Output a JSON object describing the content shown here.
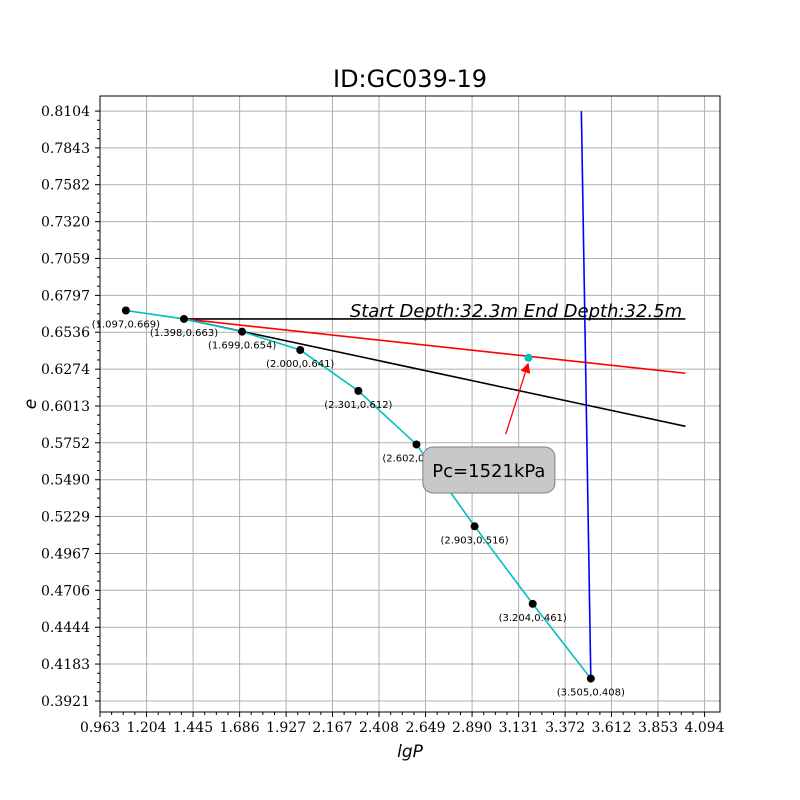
{
  "chart_data": {
    "type": "line",
    "title": "ID:GC039-19",
    "xlabel": "lgP",
    "ylabel": "e",
    "xlim": [
      0.963,
      4.174
    ],
    "ylim": [
      0.3843,
      0.8211
    ],
    "grid": true,
    "x_ticks": [
      "0.963",
      "1.204",
      "1.445",
      "1.686",
      "1.927",
      "2.167",
      "2.408",
      "2.649",
      "2.890",
      "3.131",
      "3.372",
      "3.612",
      "3.853",
      "4.094"
    ],
    "y_ticks": [
      "0.8104",
      "0.7843",
      "0.7582",
      "0.7320",
      "0.7059",
      "0.6797",
      "0.6536",
      "0.6274",
      "0.6013",
      "0.5752",
      "0.5490",
      "0.5229",
      "0.4967",
      "0.4706",
      "0.4444",
      "0.4183",
      "0.3921"
    ],
    "series": [
      {
        "color": "#00bfbf",
        "x": [
          1.097,
          1.398,
          1.699,
          2.0,
          2.301,
          2.602,
          2.903,
          3.204,
          3.505
        ],
        "y": [
          0.669,
          0.663,
          0.654,
          0.641,
          0.612,
          0.574,
          0.516,
          0.461,
          0.408
        ],
        "point_labels": [
          "(1.097,0.669)",
          "(1.398,0.663)",
          "(1.699,0.654)",
          "(2.000,0.641)",
          "(2.301,0.612)",
          "(2.602,0.574)",
          "(2.903,0.516)",
          "(3.204,0.461)",
          "(3.505,0.408)"
        ],
        "marker_color": "#000000"
      }
    ],
    "construction_lines": [
      {
        "color": "#000000",
        "x": [
          1.398,
          3.995
        ],
        "y": [
          0.663,
          0.663
        ]
      },
      {
        "color": "#ff0000",
        "x": [
          1.398,
          3.995
        ],
        "y": [
          0.663,
          0.6245
        ]
      },
      {
        "color": "#000000",
        "x": [
          1.398,
          3.995
        ],
        "y": [
          0.663,
          0.5869
        ]
      },
      {
        "color": "#0000ff",
        "x": [
          3.456,
          3.505
        ],
        "y": [
          0.8104,
          0.408
        ]
      }
    ],
    "pc_point": {
      "x": 3.182,
      "y": 0.6355,
      "color": "#00bfbf"
    },
    "annotations": {
      "depth_text": "Start Depth:32.3m End Depth:32.5m",
      "pc_text": "Pc=1521kPa",
      "pc_box_center": {
        "x": 2.977,
        "y": 0.5559
      },
      "arrow_tail": {
        "x": 3.064,
        "y": 0.5812
      },
      "arrow_head": {
        "x": 3.182,
        "y": 0.632
      },
      "arrow_color": "#ff0000"
    }
  }
}
